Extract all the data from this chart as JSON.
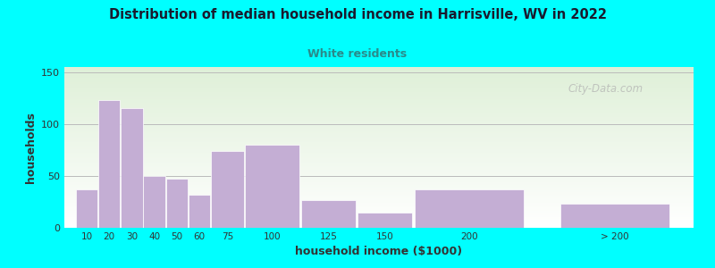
{
  "title": "Distribution of median household income in Harrisville, WV in 2022",
  "subtitle": "White residents",
  "xlabel": "household income ($1000)",
  "ylabel": "households",
  "background_color": "#00FFFF",
  "plot_bg_top": "#dff0d8",
  "plot_bg_bottom": "#ffffff",
  "bar_color": "#c4aed4",
  "bar_edge_color": "#ffffff",
  "title_color": "#1a1a2e",
  "subtitle_color": "#2a8a8a",
  "bar_labels": [
    "10",
    "20",
    "30",
    "40",
    "50",
    "60",
    "75",
    "100",
    "125",
    "150",
    "200",
    "> 200"
  ],
  "bar_values": [
    37,
    123,
    115,
    50,
    47,
    32,
    74,
    80,
    27,
    15,
    37,
    23
  ],
  "bar_widths": [
    10,
    10,
    10,
    10,
    10,
    10,
    15,
    25,
    25,
    25,
    50,
    50
  ],
  "bar_lefts": [
    5,
    15,
    25,
    35,
    45,
    55,
    65,
    80,
    105,
    130,
    155,
    220
  ],
  "xlim": [
    0,
    280
  ],
  "ylim": [
    0,
    155
  ],
  "yticks": [
    0,
    50,
    100,
    150
  ],
  "watermark": "City-Data.com"
}
